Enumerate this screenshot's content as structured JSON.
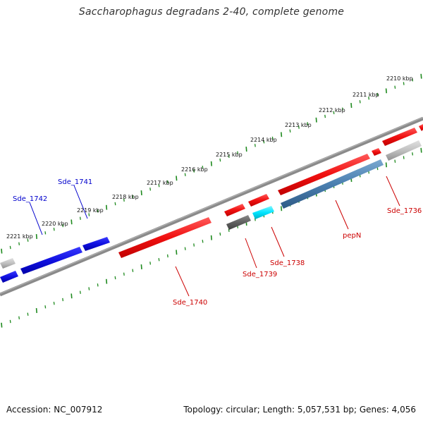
{
  "title": "Saccharophagus degradans 2-40, complete genome",
  "footer": {
    "accession": "Accession: NC_007912",
    "info": "Topology: circular; Length: 5,057,531 bp; Genes: 4,056"
  },
  "colors": {
    "backbone": "#808080",
    "tick": "#1f8a1f",
    "forward_gene": "#ff1a1a",
    "reverse_gene_blue": "#1010e0",
    "label_red": "#cc0000",
    "label_blue": "#0000cc",
    "pseudo_gray": "#666666",
    "cyan_gene": "#00e5ff",
    "steel_gene": "#4a7fb0",
    "light_gray_gene": "#c0c0c0"
  },
  "kbp_labels": [
    "2210 kbp",
    "2211 kbp",
    "2212 kbp",
    "2213 kbp",
    "2214 kbp",
    "2215 kbp",
    "2216 kbp",
    "2217 kbp",
    "2218 kbp",
    "2219 kbp",
    "2220 kbp",
    "2221 kbp"
  ],
  "gene_labels": {
    "sde_1742": "Sde_1742",
    "sde_1741": "Sde_1741",
    "sde_1740": "Sde_1740",
    "sde_1739": "Sde_1739",
    "sde_1738": "Sde_1738",
    "pepN": "pepN",
    "sde_1736": "Sde_1736"
  }
}
